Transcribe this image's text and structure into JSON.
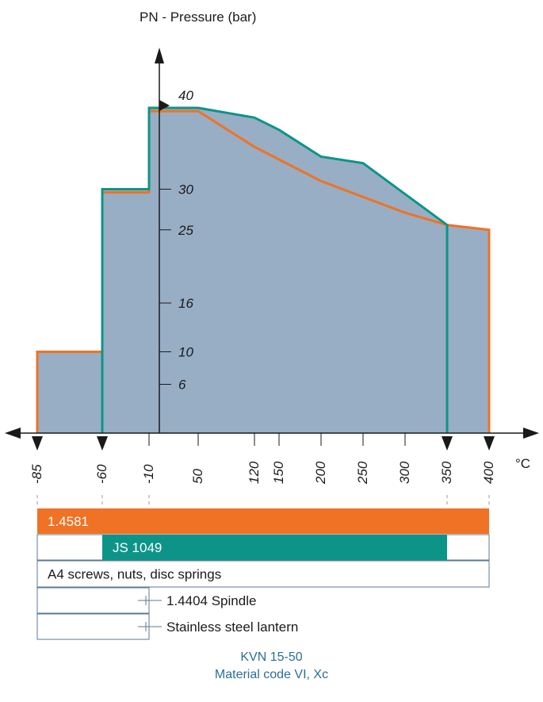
{
  "chart_data": {
    "type": "area",
    "ylabel": "PN - Pressure (bar)",
    "xunit": "°C",
    "x_ticks": [
      "-85",
      "-60",
      "-10",
      "50",
      "120",
      "150",
      "200",
      "250",
      "300",
      "350",
      "400"
    ],
    "y_ticks": [
      "40",
      "30",
      "25",
      "16",
      "10",
      "6"
    ],
    "series": [
      {
        "name": "1.4581",
        "color": "#f07224",
        "points": [
          [
            -85,
            0
          ],
          [
            -85,
            10
          ],
          [
            -60,
            10
          ],
          [
            -60,
            29.6
          ],
          [
            -10,
            29.6
          ],
          [
            -10,
            39.6
          ],
          [
            50,
            39.6
          ],
          [
            120,
            35.2
          ],
          [
            200,
            31
          ],
          [
            300,
            27.1
          ],
          [
            350,
            25.6
          ],
          [
            400,
            25
          ],
          [
            400,
            0
          ]
        ]
      },
      {
        "name": "JS 1049",
        "color": "#0d9488",
        "points": [
          [
            -60,
            0
          ],
          [
            -60,
            30
          ],
          [
            -10,
            30
          ],
          [
            -10,
            40
          ],
          [
            50,
            40
          ],
          [
            120,
            38.8
          ],
          [
            150,
            37.3
          ],
          [
            200,
            34
          ],
          [
            250,
            33.2
          ],
          [
            350,
            25.6
          ],
          [
            350,
            0
          ]
        ]
      }
    ],
    "area_color": "#98aec5",
    "material_bars": [
      {
        "label": "1.4581",
        "from": "-85",
        "to": "400",
        "color": "#f07224"
      },
      {
        "label": "JS 1049",
        "from": "-60",
        "to": "350",
        "color": "#0d9488"
      },
      {
        "label": "A4 screws, nuts, disc springs",
        "from": "-85",
        "to": "400"
      },
      {
        "label": "1.4404 Spindle",
        "from": "-85",
        "to": "-10"
      },
      {
        "label": "Stainless steel lantern",
        "from": "-85",
        "to": "-10"
      }
    ]
  },
  "footer": {
    "line1": "KVN 15-50",
    "line2": "Material code VI, Xc"
  }
}
